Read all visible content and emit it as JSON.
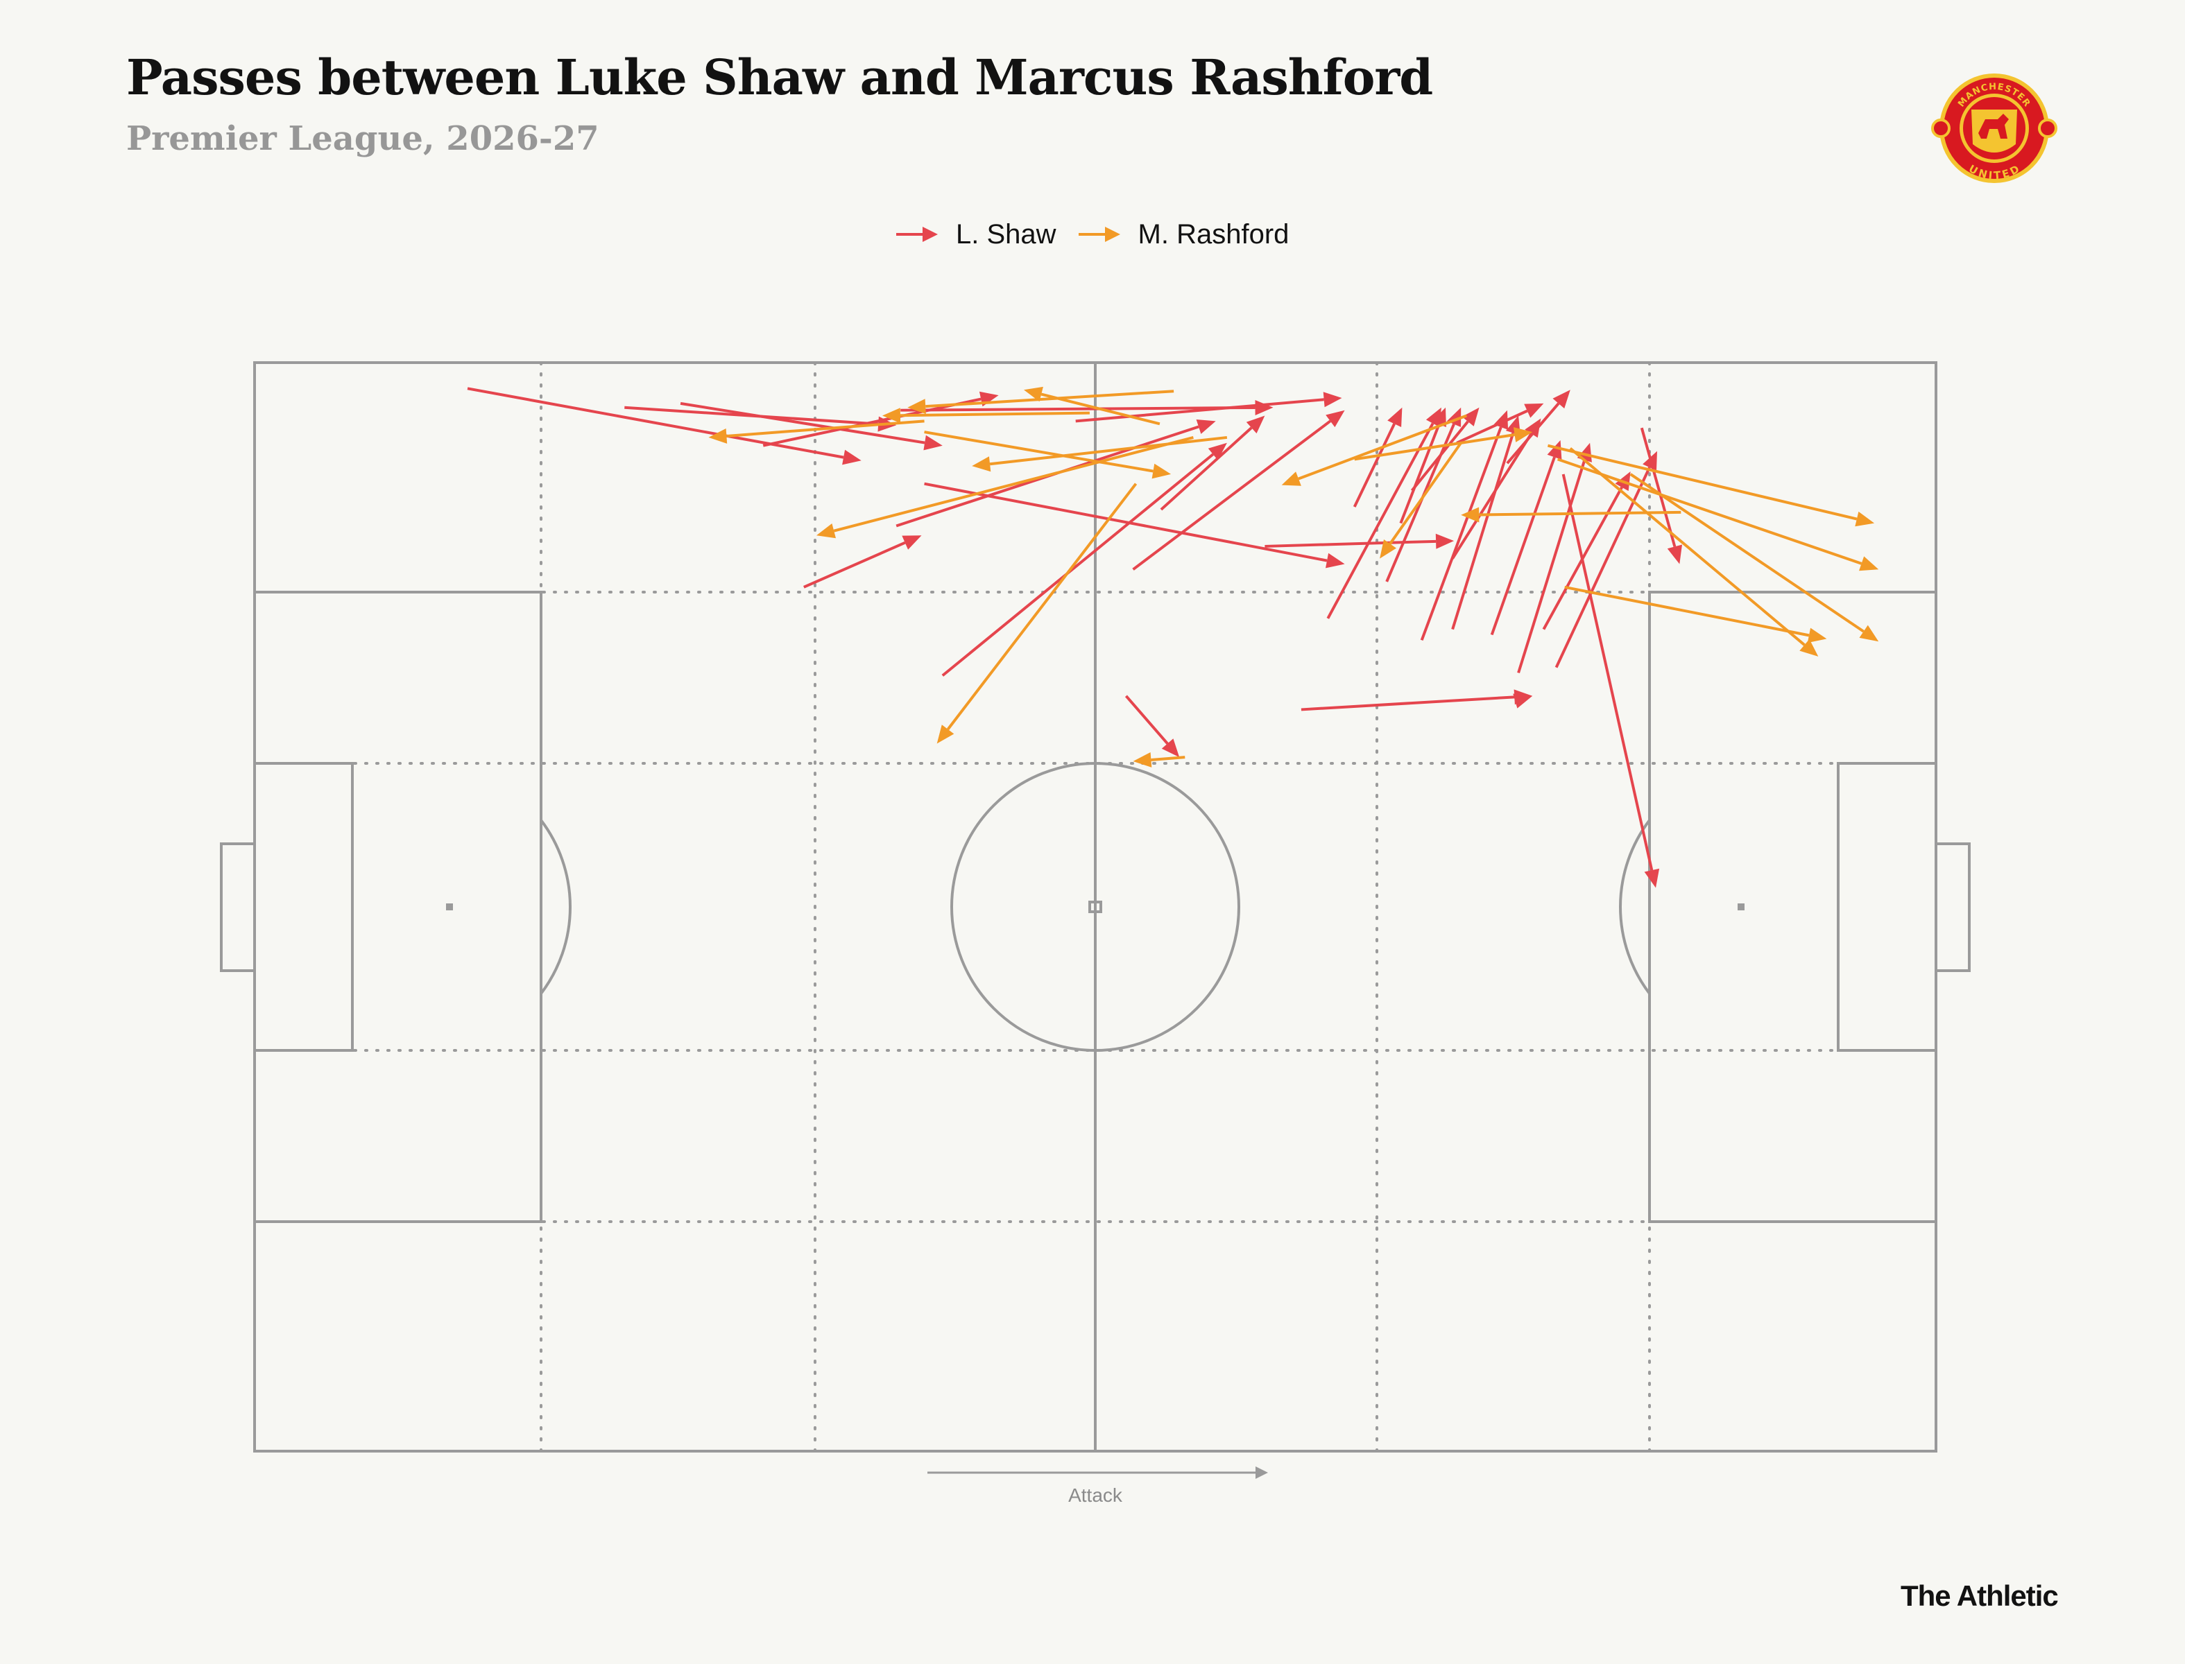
{
  "header": {
    "title": "Passes between Luke Shaw and Marcus Rashford",
    "subtitle": "Premier League, 2026-27"
  },
  "colors": {
    "shaw": "#e5454d",
    "rashford": "#f29a26",
    "pitch_lines": "#9a9a9a",
    "background": "#f7f7f3"
  },
  "crest": {
    "icon": "manchester-united-crest-icon",
    "text_top": "MANCHESTER",
    "text_bottom": "UNITED"
  },
  "annotation": {
    "attack_label": "Attack"
  },
  "footer": {
    "brand": "The Athletic"
  },
  "chart_data": {
    "type": "pass-map",
    "pitch": {
      "length": 120,
      "width": 80,
      "attack_direction": "left-to-right"
    },
    "legend": {
      "placement": "top-center",
      "entries": [
        "L. Shaw",
        "M. Rashford"
      ]
    },
    "series": [
      {
        "name": "L. Shaw",
        "color": "#e5454d",
        "passes": [
          {
            "x1": 15.2,
            "y1": 1.9,
            "x2": 43.3,
            "y2": 7.2
          },
          {
            "x1": 26.4,
            "y1": 3.3,
            "x2": 45.8,
            "y2": 4.6
          },
          {
            "x1": 30.4,
            "y1": 3.0,
            "x2": 49.1,
            "y2": 6.1
          },
          {
            "x1": 36.3,
            "y1": 6.1,
            "x2": 53.1,
            "y2": 2.4
          },
          {
            "x1": 39.2,
            "y1": 16.5,
            "x2": 47.6,
            "y2": 12.7
          },
          {
            "x1": 45.8,
            "y1": 12.0,
            "x2": 68.6,
            "y2": 4.3
          },
          {
            "x1": 47.8,
            "y1": 8.9,
            "x2": 77.8,
            "y2": 14.8
          },
          {
            "x1": 49.1,
            "y1": 23.0,
            "x2": 69.4,
            "y2": 5.9
          },
          {
            "x1": 46.1,
            "y1": 3.5,
            "x2": 72.7,
            "y2": 3.3
          },
          {
            "x1": 58.6,
            "y1": 4.3,
            "x2": 77.6,
            "y2": 2.6
          },
          {
            "x1": 62.7,
            "y1": 15.2,
            "x2": 77.8,
            "y2": 3.5
          },
          {
            "x1": 64.7,
            "y1": 10.8,
            "x2": 72.1,
            "y2": 3.9
          },
          {
            "x1": 62.2,
            "y1": 24.5,
            "x2": 66.0,
            "y2": 29.0
          },
          {
            "x1": 72.1,
            "y1": 13.5,
            "x2": 85.6,
            "y2": 13.1
          },
          {
            "x1": 76.6,
            "y1": 18.8,
            "x2": 84.7,
            "y2": 3.3
          },
          {
            "x1": 78.5,
            "y1": 10.6,
            "x2": 81.9,
            "y2": 3.3
          },
          {
            "x1": 81.8,
            "y1": 11.8,
            "x2": 85.0,
            "y2": 3.3
          },
          {
            "x1": 80.8,
            "y1": 16.1,
            "x2": 86.1,
            "y2": 3.3
          },
          {
            "x1": 82.6,
            "y1": 9.4,
            "x2": 87.4,
            "y2": 3.3
          },
          {
            "x1": 83.3,
            "y1": 20.4,
            "x2": 89.4,
            "y2": 3.5
          },
          {
            "x1": 85.5,
            "y1": 19.6,
            "x2": 90.2,
            "y2": 3.9
          },
          {
            "x1": 85.5,
            "y1": 14.4,
            "x2": 91.8,
            "y2": 4.1
          },
          {
            "x1": 85.8,
            "y1": 5.9,
            "x2": 92.0,
            "y2": 3.0
          },
          {
            "x1": 89.4,
            "y1": 7.4,
            "x2": 93.9,
            "y2": 2.0
          },
          {
            "x1": 88.3,
            "y1": 20.0,
            "x2": 93.2,
            "y2": 5.7
          },
          {
            "x1": 90.2,
            "y1": 22.8,
            "x2": 95.3,
            "y2": 5.9
          },
          {
            "x1": 93.4,
            "y1": 8.2,
            "x2": 100.0,
            "y2": 38.6
          },
          {
            "x1": 92.0,
            "y1": 19.6,
            "x2": 98.2,
            "y2": 8.0
          },
          {
            "x1": 92.9,
            "y1": 22.4,
            "x2": 100.1,
            "y2": 6.5
          },
          {
            "x1": 99.0,
            "y1": 4.8,
            "x2": 101.7,
            "y2": 14.8
          },
          {
            "x1": 90.2,
            "y1": 24.8,
            "x2": 91.2,
            "y2": 24.5
          },
          {
            "x1": 74.7,
            "y1": 25.5,
            "x2": 91.2,
            "y2": 24.5
          }
        ]
      },
      {
        "name": "M. Rashford",
        "color": "#f29a26",
        "passes": [
          {
            "x1": 47.8,
            "y1": 4.3,
            "x2": 32.4,
            "y2": 5.5
          },
          {
            "x1": 59.6,
            "y1": 3.7,
            "x2": 44.8,
            "y2": 3.9
          },
          {
            "x1": 65.6,
            "y1": 2.1,
            "x2": 46.6,
            "y2": 3.3
          },
          {
            "x1": 64.6,
            "y1": 4.5,
            "x2": 54.9,
            "y2": 2.0
          },
          {
            "x1": 47.8,
            "y1": 5.1,
            "x2": 65.4,
            "y2": 8.2
          },
          {
            "x1": 67.0,
            "y1": 5.5,
            "x2": 40.1,
            "y2": 12.7
          },
          {
            "x1": 62.9,
            "y1": 8.9,
            "x2": 48.7,
            "y2": 28.0
          },
          {
            "x1": 69.4,
            "y1": 5.5,
            "x2": 51.2,
            "y2": 7.6
          },
          {
            "x1": 86.5,
            "y1": 3.9,
            "x2": 73.3,
            "y2": 9.0
          },
          {
            "x1": 78.5,
            "y1": 7.1,
            "x2": 91.2,
            "y2": 5.1
          },
          {
            "x1": 86.1,
            "y1": 5.9,
            "x2": 80.3,
            "y2": 14.4
          },
          {
            "x1": 101.8,
            "y1": 11.0,
            "x2": 86.1,
            "y2": 11.2
          },
          {
            "x1": 92.3,
            "y1": 6.1,
            "x2": 115.6,
            "y2": 11.8
          },
          {
            "x1": 93.0,
            "y1": 7.1,
            "x2": 115.9,
            "y2": 15.2
          },
          {
            "x1": 93.5,
            "y1": 16.5,
            "x2": 112.2,
            "y2": 20.3
          },
          {
            "x1": 93.9,
            "y1": 6.3,
            "x2": 111.6,
            "y2": 21.6
          },
          {
            "x1": 98.2,
            "y1": 8.2,
            "x2": 115.9,
            "y2": 20.5
          },
          {
            "x1": 66.4,
            "y1": 29.0,
            "x2": 62.7,
            "y2": 29.3
          }
        ]
      }
    ]
  }
}
